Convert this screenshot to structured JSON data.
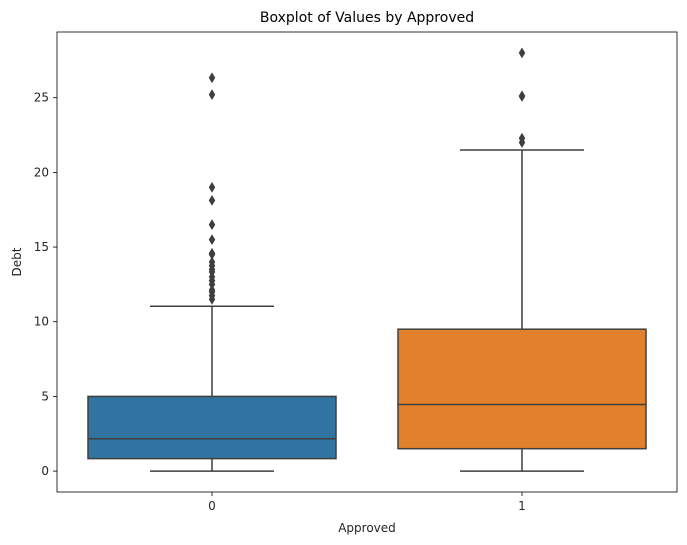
{
  "chart_data": {
    "type": "boxplot",
    "title": "Boxplot of Values by Approved",
    "xlabel": "Approved",
    "ylabel": "Debt",
    "categories": [
      "0",
      "1"
    ],
    "ylim": [
      -1.4,
      29.4
    ],
    "yticks": [
      0,
      5,
      10,
      15,
      20,
      25
    ],
    "grid": false,
    "boxes": [
      {
        "category": "0",
        "color": "#3274a1",
        "min": 0,
        "q1": 0.835,
        "median": 2.165,
        "q3": 5.0,
        "max": 11.04,
        "outliers": [
          11.5,
          11.75,
          12.0,
          12.125,
          12.5,
          12.75,
          13.0,
          13.335,
          13.5,
          13.75,
          14.0,
          14.5,
          14.585,
          15.5,
          16.5,
          18.125,
          19.0,
          25.21,
          26.335
        ]
      },
      {
        "category": "1",
        "color": "#e1812c",
        "min": 0,
        "q1": 1.5,
        "median": 4.46,
        "q3": 9.5,
        "max": 21.5,
        "outliers": [
          22.0,
          22.29,
          25.085,
          25.125,
          28.0
        ]
      }
    ]
  }
}
